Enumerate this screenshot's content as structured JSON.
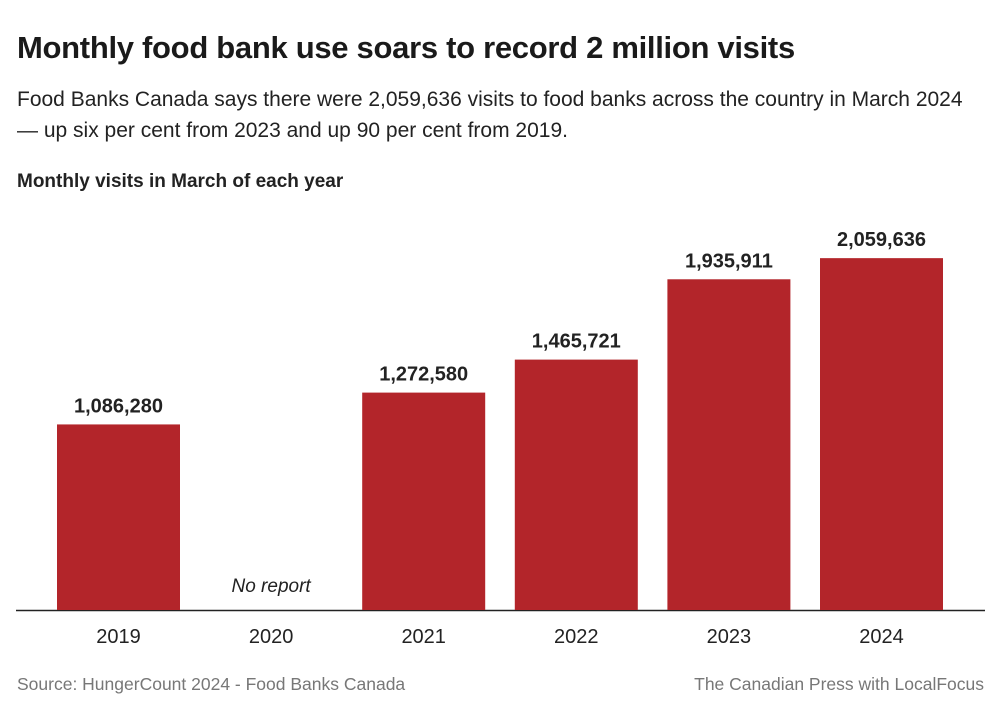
{
  "header": {
    "title": "Monthly food bank use soars to record 2 million visits",
    "subtitle": "Food Banks Canada says there were 2,059,636 visits to food banks across the country in March 2024 — up six per cent from 2023 and up 90 per cent from 2019.",
    "section_label": "Monthly visits in March of each year"
  },
  "footer": {
    "source": "Source:  HungerCount 2024 - Food Banks Canada",
    "credit": "The Canadian Press with LocalFocus"
  },
  "chart_data": {
    "type": "bar",
    "title": "Monthly visits in March of each year",
    "xlabel": "",
    "ylabel": "",
    "categories": [
      "2019",
      "2020",
      "2021",
      "2022",
      "2023",
      "2024"
    ],
    "values": [
      1086280,
      null,
      1272580,
      1465721,
      1935911,
      2059636
    ],
    "data_labels": [
      "1,086,280",
      "No report",
      "1,272,580",
      "1,465,721",
      "1,935,911",
      "2,059,636"
    ],
    "ylim": [
      0,
      2400000
    ],
    "grid": false,
    "color": "#b3252a"
  }
}
